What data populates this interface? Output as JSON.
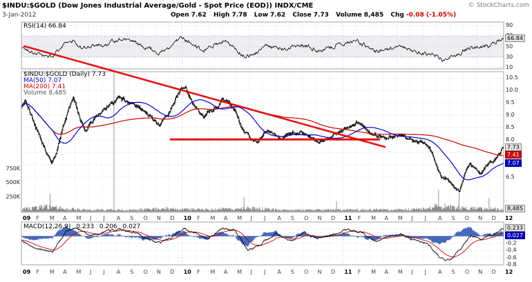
{
  "header": {
    "title": "$INDU:$GOLD (Dow Jones Industrial Average/Gold - Spot Price (EOD)) INDX/CME",
    "copyright": "© StockCharts.com",
    "date": "3-Jan-2012",
    "quote": {
      "open_label": "Open",
      "open": "7.62",
      "high_label": "High",
      "high": "7.78",
      "low_label": "Low",
      "low": "7.62",
      "close_label": "Close",
      "close": "7.73",
      "volume_label": "Volume",
      "volume": "8,485",
      "chg_label": "Chg",
      "chg": "-0.08 (-1.05%)"
    }
  },
  "legends": {
    "rsi": "RSI(14) 66.84",
    "symbol": "$INDU:$GOLD (Daily) 7.73",
    "ma50": "MA(50) 7.07",
    "ma200": "MA(200) 7.41",
    "volume": "Volume 8,485",
    "macd_label": "MACD(12,26,9)",
    "macd_value": "0.233",
    "macd_signal_value": "0.206",
    "macd_hist_value": "0.027"
  },
  "axes": {
    "rsi_ticks": [
      90,
      70,
      50,
      30,
      10
    ],
    "price_ticks": [
      10.5,
      10.0,
      9.5,
      9.0,
      8.5,
      8.0,
      7.5,
      7.0,
      6.5
    ],
    "volume_ticks": [
      {
        "label": "750K",
        "value": 750
      },
      {
        "label": "500K",
        "value": 500
      },
      {
        "label": "250K",
        "value": 250
      }
    ],
    "macd_ticks": [
      0.2,
      0.0,
      -0.2,
      -0.4,
      -0.6,
      -0.8
    ],
    "months": [
      "09",
      "F",
      "M",
      "A",
      "M",
      "J",
      "J",
      "A",
      "S",
      "O",
      "N",
      "D",
      "10",
      "F",
      "M",
      "A",
      "M",
      "J",
      "J",
      "A",
      "S",
      "O",
      "N",
      "D",
      "11",
      "F",
      "M",
      "A",
      "M",
      "J",
      "J",
      "A",
      "S",
      "O",
      "N",
      "D",
      "12"
    ],
    "year_indices": [
      0,
      12,
      24,
      36
    ]
  },
  "value_boxes": [
    {
      "panel": "rsi",
      "label": "66.84",
      "value": 66.84,
      "style": "gray"
    },
    {
      "panel": "price",
      "label": "7.73",
      "value": 7.73,
      "style": "gray"
    },
    {
      "panel": "price",
      "label": "7.41",
      "value": 7.41,
      "style": "red"
    },
    {
      "panel": "price",
      "label": "7.07",
      "value": 7.07,
      "style": "blue"
    },
    {
      "panel": "volume",
      "label": "8,485",
      "value": 8.485,
      "style": "gray"
    },
    {
      "panel": "macd",
      "label": "0.233",
      "value": 0.233,
      "style": "gray"
    },
    {
      "panel": "macd",
      "label": "0.027",
      "value": 0.027,
      "style": "blue"
    }
  ],
  "colors": {
    "candle": "#000000",
    "ma50": "#0000cc",
    "ma200": "#cc0000",
    "volume_bars": "#888888",
    "rsi_line": "#000000",
    "macd_line": "#000000",
    "macd_signal": "#cc0000",
    "macd_histogram": "#4466bb",
    "annotation": "#e60000",
    "grid": "#e4e4e4"
  },
  "chart_data": [
    {
      "panel": "rsi",
      "type": "line",
      "name": "RSI(14)",
      "last": 66.84,
      "ylim": [
        0,
        100
      ],
      "overbought_oversold_band": [
        30,
        70
      ],
      "x_unit": "months from Jan-2009 (0) to Jan-2012 (36)",
      "monthly_anchors": [
        [
          0,
          50
        ],
        [
          0.8,
          40
        ],
        [
          1.5,
          34
        ],
        [
          2.3,
          31
        ],
        [
          3.2,
          55
        ],
        [
          3.9,
          63
        ],
        [
          4.5,
          46
        ],
        [
          5.5,
          52
        ],
        [
          6.5,
          56
        ],
        [
          7.3,
          64
        ],
        [
          8.3,
          58
        ],
        [
          9.3,
          48
        ],
        [
          10.4,
          38
        ],
        [
          11.3,
          52
        ],
        [
          11.9,
          64
        ],
        [
          12.5,
          58
        ],
        [
          13.6,
          42
        ],
        [
          14.6,
          56
        ],
        [
          15.4,
          64
        ],
        [
          16.5,
          32
        ],
        [
          17.4,
          36
        ],
        [
          18.4,
          52
        ],
        [
          19.4,
          42
        ],
        [
          20.4,
          54
        ],
        [
          21.3,
          50
        ],
        [
          22.3,
          42
        ],
        [
          23.3,
          50
        ],
        [
          24.4,
          60
        ],
        [
          25.3,
          58
        ],
        [
          26.3,
          40
        ],
        [
          27.3,
          44
        ],
        [
          28.3,
          52
        ],
        [
          29.3,
          42
        ],
        [
          30.4,
          36
        ],
        [
          31.4,
          26
        ],
        [
          32.4,
          32
        ],
        [
          33.2,
          45
        ],
        [
          34,
          48
        ],
        [
          34.8,
          50
        ],
        [
          35.4,
          58
        ],
        [
          36,
          66.84
        ]
      ]
    },
    {
      "panel": "price",
      "type": "candlestick",
      "name": "$INDU:$GOLD daily close with MA(50), MA(200) and volume",
      "last": {
        "open": 7.62,
        "high": 7.78,
        "low": 7.62,
        "close": 7.73,
        "volume": 8485
      },
      "ma50_last": 7.07,
      "ma200_last": 7.41,
      "ylim_visible": [
        6.5,
        10.5
      ],
      "x_unit": "months from Jan-2009 (0) to Jan-2012 (36)",
      "monthly_close_anchors": [
        [
          0,
          9.35
        ],
        [
          0.3,
          9.58
        ],
        [
          0.8,
          8.95
        ],
        [
          1.4,
          8.05
        ],
        [
          1.9,
          7.45
        ],
        [
          2.25,
          7.1
        ],
        [
          2.6,
          7.45
        ],
        [
          3.1,
          8.55
        ],
        [
          3.6,
          9.3
        ],
        [
          3.9,
          9.62
        ],
        [
          4.4,
          8.8
        ],
        [
          4.8,
          8.4
        ],
        [
          5.5,
          8.9
        ],
        [
          6.3,
          9.25
        ],
        [
          7.2,
          9.68
        ],
        [
          7.8,
          9.55
        ],
        [
          8.6,
          9.4
        ],
        [
          9.3,
          9.1
        ],
        [
          10.3,
          8.6
        ],
        [
          10.9,
          8.95
        ],
        [
          11.5,
          9.7
        ],
        [
          11.9,
          10.0
        ],
        [
          12.3,
          10.12
        ],
        [
          12.8,
          9.4
        ],
        [
          13.6,
          8.9
        ],
        [
          14.5,
          9.35
        ],
        [
          15.3,
          9.68
        ],
        [
          15.9,
          9.3
        ],
        [
          16.4,
          8.55
        ],
        [
          17.1,
          8.05
        ],
        [
          17.6,
          7.95
        ],
        [
          18.4,
          8.4
        ],
        [
          19.3,
          8.0
        ],
        [
          20.3,
          8.35
        ],
        [
          21.2,
          8.25
        ],
        [
          22.2,
          7.95
        ],
        [
          23.2,
          8.2
        ],
        [
          24.3,
          8.5
        ],
        [
          25.2,
          8.72
        ],
        [
          26.2,
          8.2
        ],
        [
          27.2,
          8.05
        ],
        [
          28.2,
          8.25
        ],
        [
          29.2,
          8.0
        ],
        [
          30.2,
          7.88
        ],
        [
          30.8,
          7.3
        ],
        [
          31.3,
          6.55
        ],
        [
          31.8,
          6.45
        ],
        [
          32.3,
          6.15
        ],
        [
          32.7,
          5.95
        ],
        [
          33.1,
          6.7
        ],
        [
          33.5,
          7.05
        ],
        [
          33.9,
          6.85
        ],
        [
          34.3,
          6.6
        ],
        [
          34.8,
          7.0
        ],
        [
          35.3,
          7.2
        ],
        [
          35.7,
          7.45
        ],
        [
          36,
          7.73
        ]
      ],
      "volume_base_anchors_thousands": [
        [
          0,
          45
        ],
        [
          2,
          85
        ],
        [
          3,
          55
        ],
        [
          5,
          30
        ],
        [
          8,
          32
        ],
        [
          10,
          50
        ],
        [
          11,
          55
        ],
        [
          12,
          40
        ],
        [
          16,
          45
        ],
        [
          17,
          60
        ],
        [
          19,
          35
        ],
        [
          22,
          30
        ],
        [
          25,
          32
        ],
        [
          28,
          35
        ],
        [
          30,
          45
        ],
        [
          31,
          95
        ],
        [
          32,
          80
        ],
        [
          33,
          60
        ],
        [
          34,
          55
        ],
        [
          35,
          50
        ],
        [
          36,
          40
        ]
      ],
      "volume_spikes_thousands": [
        [
          2.15,
          310
        ],
        [
          6.9,
          2450
        ],
        [
          16.6,
          260
        ],
        [
          23.5,
          180
        ],
        [
          31.15,
          380
        ],
        [
          32.65,
          320
        ],
        [
          34.9,
          240
        ]
      ],
      "annotations": [
        {
          "name": "descending-trendline",
          "from_month": 0.21,
          "from_price": 11.78,
          "to_month": 27.13,
          "to_price": 7.72,
          "color": "#e60000",
          "width": 2.6,
          "note": "hand-drawn line, starts over the RSI panel and falls across the price panel"
        },
        {
          "name": "horizontal-support-line",
          "from_month": 11.15,
          "from_price": 8.02,
          "to_month": 26.7,
          "to_price": 8.02,
          "color": "#e60000",
          "width": 3
        }
      ]
    },
    {
      "panel": "macd",
      "type": "line+histogram",
      "name": "MACD(12,26,9)",
      "last": {
        "macd": 0.233,
        "signal": 0.206,
        "hist": 0.027
      },
      "x_unit": "months from Jan-2009 (0) to Jan-2012 (36)",
      "monthly_macd_anchors": [
        [
          0,
          -0.12
        ],
        [
          1,
          -0.32
        ],
        [
          2.3,
          -0.44
        ],
        [
          3.3,
          0.12
        ],
        [
          4.1,
          0.24
        ],
        [
          5,
          0.04
        ],
        [
          6,
          0.1
        ],
        [
          7.4,
          0.22
        ],
        [
          8.4,
          0.1
        ],
        [
          9.4,
          -0.06
        ],
        [
          10.4,
          -0.2
        ],
        [
          11.5,
          0.05
        ],
        [
          12.2,
          0.22
        ],
        [
          13.2,
          0.05
        ],
        [
          13.9,
          -0.08
        ],
        [
          15,
          0.2
        ],
        [
          15.9,
          0.18
        ],
        [
          16.9,
          -0.4
        ],
        [
          17.9,
          -0.22
        ],
        [
          19,
          0.08
        ],
        [
          20.1,
          -0.14
        ],
        [
          21.1,
          0.1
        ],
        [
          22.2,
          -0.06
        ],
        [
          23.2,
          0.06
        ],
        [
          24.4,
          0.2
        ],
        [
          25.3,
          0.12
        ],
        [
          26.4,
          -0.14
        ],
        [
          27.4,
          -0.02
        ],
        [
          28.3,
          0.08
        ],
        [
          29.3,
          -0.12
        ],
        [
          30.3,
          -0.2
        ],
        [
          31.2,
          -0.58
        ],
        [
          32,
          -0.7
        ],
        [
          32.9,
          -0.3
        ],
        [
          33.6,
          0.02
        ],
        [
          34.3,
          -0.1
        ],
        [
          35,
          0.02
        ],
        [
          35.6,
          0.12
        ],
        [
          36,
          0.233
        ]
      ]
    }
  ]
}
